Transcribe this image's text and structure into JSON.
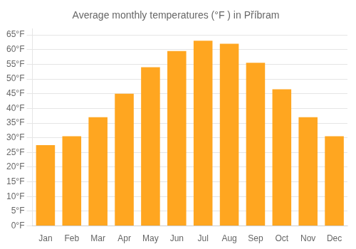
{
  "chart_data": {
    "type": "bar",
    "title": "Average monthly temperatures (°F ) in Příbram",
    "categories": [
      "Jan",
      "Feb",
      "Mar",
      "Apr",
      "May",
      "Jun",
      "Jul",
      "Aug",
      "Sep",
      "Oct",
      "Nov",
      "Dec"
    ],
    "values": [
      27.5,
      30.5,
      37,
      45,
      54,
      59.5,
      63,
      62,
      55.5,
      46.5,
      37,
      30.5
    ],
    "color": "#FFA620",
    "ylim": [
      0,
      67
    ],
    "yticks": [
      {
        "value": 0,
        "label": "0°F"
      },
      {
        "value": 5,
        "label": "5°F"
      },
      {
        "value": 10,
        "label": "10°F"
      },
      {
        "value": 15,
        "label": "15°F"
      },
      {
        "value": 20,
        "label": "20°F"
      },
      {
        "value": 25,
        "label": "25°F"
      },
      {
        "value": 30,
        "label": "30°F"
      },
      {
        "value": 35,
        "label": "35°F"
      },
      {
        "value": 40,
        "label": "40°F"
      },
      {
        "value": 45,
        "label": "45°F"
      },
      {
        "value": 50,
        "label": "50°F"
      },
      {
        "value": 55,
        "label": "55°F"
      },
      {
        "value": 60,
        "label": "60°F"
      },
      {
        "value": 65,
        "label": "65°F"
      }
    ],
    "grid": true
  }
}
